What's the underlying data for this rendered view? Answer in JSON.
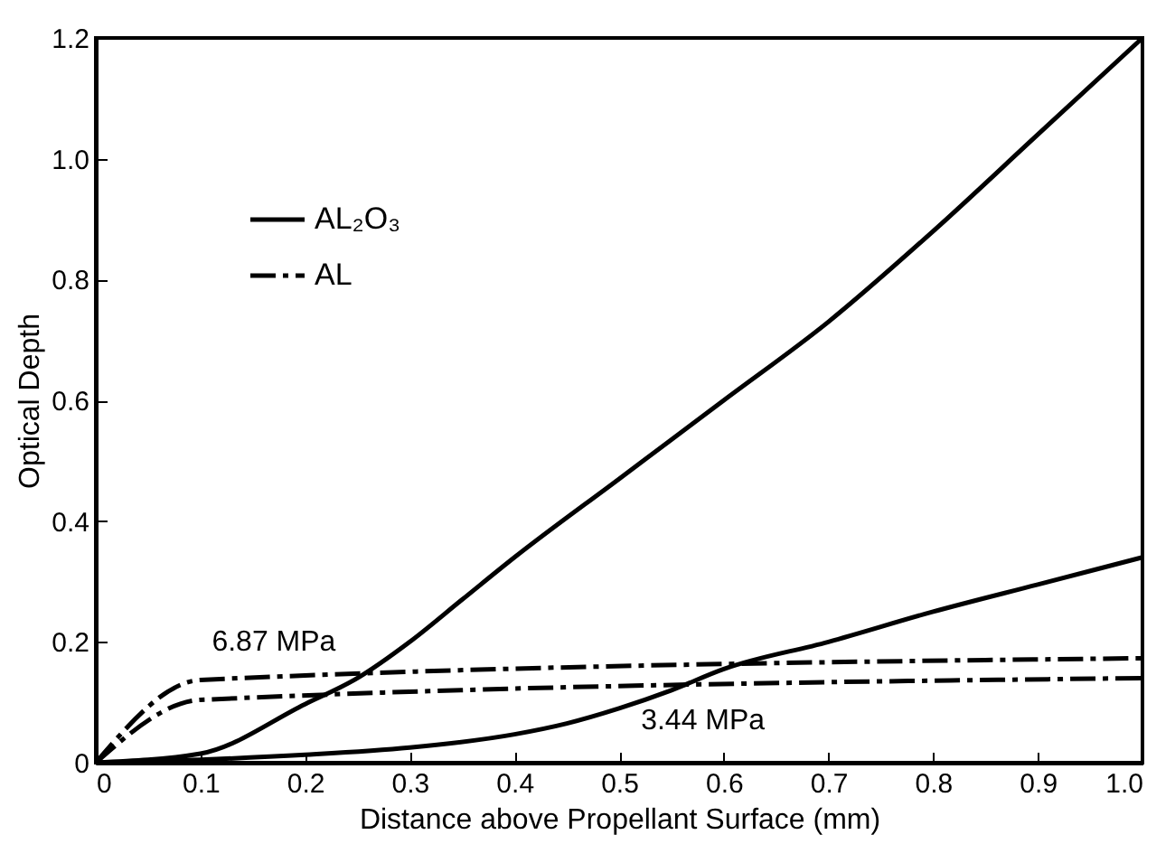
{
  "chart_data": {
    "type": "line",
    "xlabel": "Distance above Propellant Surface (mm)",
    "ylabel": "Optical Depth",
    "series": [
      {
        "name": "AL₂O₃",
        "color": "#000000",
        "line_style": "solid",
        "x": [
          0,
          0.1,
          0.2,
          0.25,
          0.3,
          0.35,
          0.4,
          0.5,
          0.6,
          0.7,
          0.8,
          0.9,
          1.0
        ],
        "values": [
          0,
          0.015,
          0.097,
          0.14,
          0.2,
          0.27,
          0.34,
          0.47,
          0.6,
          0.73,
          0.88,
          1.04,
          1.2
        ]
      },
      {
        "name": "AL",
        "color": "#000000",
        "line_style": "dashed",
        "x": [
          0,
          0.1,
          1.0
        ],
        "values": [
          0,
          0.137,
          0.173
        ]
      },
      {
        "color": "#000000",
        "line_style": "solid",
        "x": [
          0,
          0.1,
          0.2,
          0.3,
          0.4,
          0.45,
          0.5,
          0.55,
          0.6,
          0.7,
          0.8,
          0.9,
          1.0
        ],
        "values": [
          0,
          0.005,
          0.013,
          0.025,
          0.047,
          0.065,
          0.09,
          0.12,
          0.155,
          0.2,
          0.25,
          0.295,
          0.34
        ]
      },
      {
        "color": "#000000",
        "line_style": "dashed",
        "x": [
          0,
          0.1,
          1.0
        ],
        "values": [
          0,
          0.104,
          0.14
        ]
      }
    ],
    "annotations": [
      "6.87 MPa",
      "3.44 MPa"
    ],
    "xlim": [
      0,
      1.0
    ],
    "xticks": [
      0,
      0.1,
      0.2,
      0.3,
      0.4,
      0.5,
      0.6,
      0.7,
      0.8,
      0.9,
      {
        "value": 1.0,
        "label": "1.0"
      }
    ],
    "ylim": [
      0,
      1.2
    ],
    "yticks": [
      0,
      0.2,
      0.4,
      0.6,
      0.8,
      {
        "value": 1.0,
        "label": "1.0"
      },
      1.2
    ],
    "grid": false,
    "legend": "top left",
    "marker": "none"
  }
}
